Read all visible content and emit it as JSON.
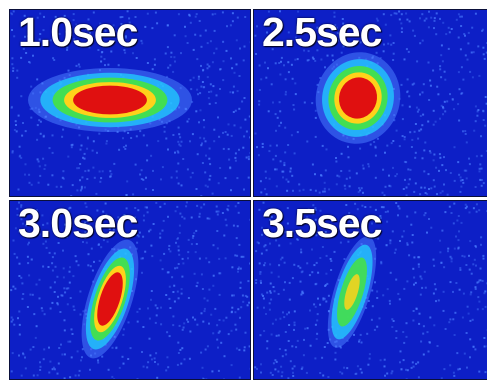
{
  "panels": [
    {
      "label": "1.0sec"
    },
    {
      "label": "2.5sec"
    },
    {
      "label": "3.0sec"
    },
    {
      "label": "3.5sec"
    }
  ],
  "colors": {
    "background": "#0d1fc6",
    "noise": "#4a7cff",
    "cyan": "#22d0ff",
    "green": "#45e04a",
    "yellow": "#ffd21a",
    "red": "#e01010"
  }
}
